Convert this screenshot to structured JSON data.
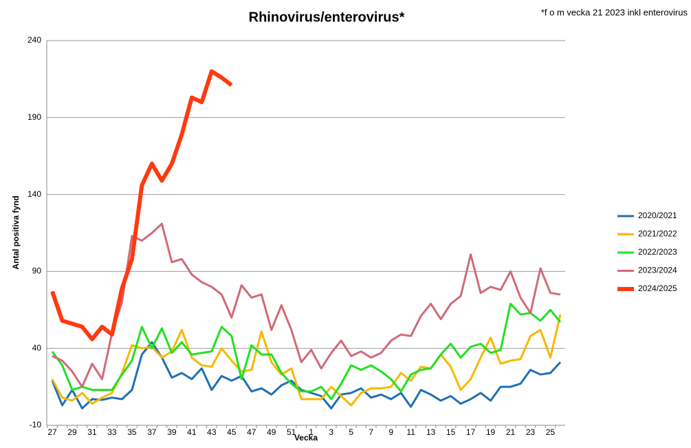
{
  "chart_data": {
    "type": "line",
    "title": "Rhinovirus/enterovirus*",
    "annotation": "*f o m vecka 21 2023 inkl enterovirus",
    "x_label": "Vecka",
    "y_label": "Antal positiva fynd",
    "categories": [
      "27",
      null,
      "29",
      null,
      "31",
      null,
      "33",
      null,
      "35",
      null,
      "37",
      null,
      "39",
      null,
      "41",
      null,
      "43",
      null,
      "45",
      null,
      "47",
      null,
      "49",
      null,
      "51",
      null,
      "1",
      null,
      "3",
      null,
      "5",
      null,
      "7",
      null,
      "9",
      null,
      "11",
      null,
      "13",
      null,
      "15",
      null,
      "17",
      null,
      "19",
      null,
      "21",
      null,
      "23",
      null,
      "25",
      null
    ],
    "ylim": [
      -10,
      240
    ],
    "yticks": [
      -10,
      40,
      90,
      140,
      190,
      240
    ],
    "grid": true,
    "series": [
      {
        "name": "2020/2021",
        "color": "#1f6fb4",
        "width": 3,
        "values": [
          19,
          3,
          13,
          1,
          7,
          6.5,
          8,
          7,
          13,
          36,
          44,
          34,
          21,
          24,
          20,
          27,
          13,
          22,
          19,
          22,
          12,
          14,
          10,
          16,
          19,
          13,
          11,
          9,
          1,
          10,
          11,
          14,
          8,
          10,
          7,
          11,
          2,
          13,
          10,
          6,
          9,
          4,
          7,
          11,
          6,
          15,
          15,
          17,
          26,
          23,
          24,
          31
        ]
      },
      {
        "name": "2021/2022",
        "color": "#f5b800",
        "width": 3,
        "values": [
          20,
          8,
          6,
          11,
          4,
          8,
          11,
          24,
          42,
          40,
          41,
          34,
          38,
          52,
          34,
          29,
          28,
          40,
          32,
          25,
          26,
          51,
          31,
          23,
          27,
          7,
          7,
          7,
          15,
          9,
          3,
          11,
          14,
          14,
          15,
          24,
          19,
          28,
          27,
          36,
          28,
          13,
          20,
          34,
          47,
          30,
          32,
          33,
          48,
          52,
          34,
          62
        ]
      },
      {
        "name": "2022/2023",
        "color": "#22e022",
        "width": 3,
        "values": [
          38,
          29,
          13,
          15,
          13,
          13,
          13,
          23,
          32,
          54,
          40,
          53,
          37,
          44,
          36,
          37,
          38,
          54,
          48,
          20,
          42,
          36,
          36,
          24,
          17,
          12,
          12,
          15,
          7,
          17,
          29,
          26,
          29,
          25,
          20,
          12,
          23,
          26,
          27,
          36,
          43,
          34,
          41,
          43,
          37,
          39,
          69,
          62,
          63,
          58,
          65,
          57
        ]
      },
      {
        "name": "2023/2024",
        "color": "#d06a78",
        "width": 3,
        "values": [
          35,
          32,
          25,
          15,
          30,
          20,
          50,
          70,
          113,
          110,
          115,
          121,
          96,
          98,
          88,
          83,
          80,
          75,
          60,
          81,
          73,
          75,
          52,
          68,
          52,
          31,
          39,
          27,
          37,
          45,
          35,
          38,
          34,
          37,
          45,
          49,
          48,
          61,
          69,
          59,
          69,
          74,
          101,
          76,
          80,
          78,
          90,
          73,
          63,
          92,
          76,
          75
        ]
      },
      {
        "name": "2024/2025",
        "color": "#ff3a10",
        "width": 6,
        "values": [
          77,
          58,
          56,
          54,
          46,
          54,
          49,
          79,
          98,
          146,
          160,
          149,
          160,
          179,
          203,
          200,
          220,
          216,
          211,
          null,
          null,
          null,
          null,
          null,
          null,
          null,
          null,
          null,
          null,
          null,
          null,
          null,
          null,
          null,
          null,
          null,
          null,
          null,
          null,
          null,
          null,
          null,
          null,
          null,
          null,
          null,
          null,
          null,
          null,
          null,
          null,
          null
        ]
      }
    ]
  }
}
